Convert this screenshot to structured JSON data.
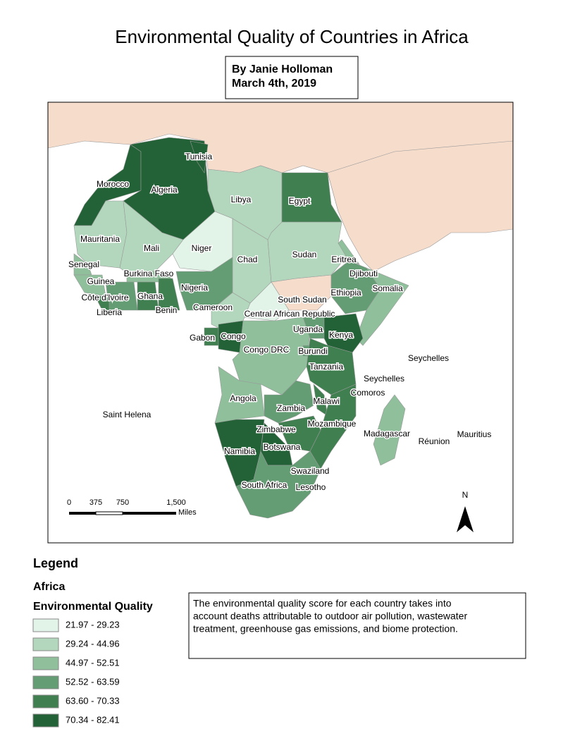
{
  "header": {
    "title": "Environmental Quality of Countries in Africa",
    "author_lines": [
      "By Janie Holloman",
      "March 4th, 2019"
    ]
  },
  "map": {
    "labels": [
      "Tunisia",
      "Morocco",
      "Algeria",
      "Libya",
      "Egypt",
      "Mauritania",
      "Mali",
      "Niger",
      "Chad",
      "Sudan",
      "Eritrea",
      "Senegal",
      "Burkina Faso",
      "Djibouti",
      "Guinea",
      "Nigeria",
      "Ethiopia",
      "Somalia",
      "Côte d'Ivoire",
      "Ghana",
      "South Sudan",
      "Liberia",
      "Benin",
      "Cameroon",
      "Central African Republic",
      "Uganda",
      "Gabon",
      "Congo",
      "Kenya",
      "Congo DRC",
      "Burundi",
      "Seychelles",
      "Tanzania",
      "Seychelles",
      "Comoros",
      "Angola",
      "Malawi",
      "Zambia",
      "Saint Helena",
      "Mozambique",
      "Zimbabwe",
      "Madagascar",
      "Mauritius",
      "Réunion",
      "Namibia",
      "Botswana",
      "Swaziland",
      "South Africa",
      "Lesotho"
    ]
  },
  "scale_bar": {
    "ticks": [
      "0",
      "375",
      "750",
      "1,500"
    ],
    "unit": "Miles"
  },
  "north_arrow": "N",
  "legend": {
    "title": "Legend",
    "layer": "Africa",
    "field": "Environmental Quality",
    "classes": [
      {
        "label": "21.97 - 29.23",
        "color": "#e2f4e8"
      },
      {
        "label": "29.24 - 44.96",
        "color": "#b3d7bd"
      },
      {
        "label": "44.97 - 52.51",
        "color": "#8fbf9b"
      },
      {
        "label": "52.52 - 63.59",
        "color": "#649d74"
      },
      {
        "label": "63.60 - 70.33",
        "color": "#3f7f50"
      },
      {
        "label": "70.34 - 82.41",
        "color": "#236236"
      }
    ]
  },
  "description": [
    "The environmental quality score for each country takes into",
    "account deaths attributable to outdoor air pollution, wastewater",
    "treatment, greenhouse gas emissions, and biome protection."
  ]
}
